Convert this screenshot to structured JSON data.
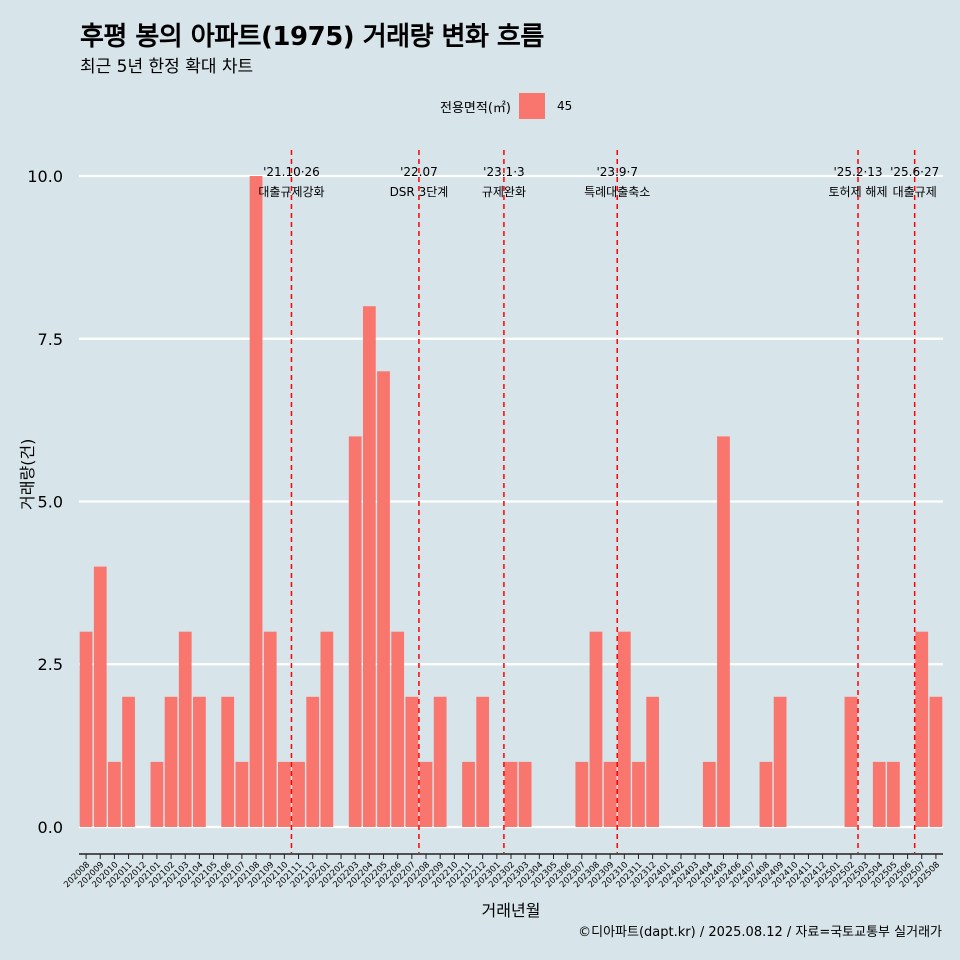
{
  "title": "후평 봉의 아파트(1975) 거래량 변화 흐름",
  "subtitle": "최근 5년 한정 확대 차트",
  "legend": {
    "title": "전용면적(㎡)",
    "item": "45",
    "color": "#f8766d"
  },
  "caption": "©디아파트(dapt.kr) / 2025.08.12 / 자료=국토교통부 실거래가",
  "chart_data": {
    "type": "bar",
    "xlabel": "거래년월",
    "ylabel": "거래량(건)",
    "ylim": [
      -0.4,
      10.4
    ],
    "yticks": [
      0.0,
      2.5,
      5.0,
      7.5,
      10.0
    ],
    "ytick_labels": [
      "0.0",
      "2.5",
      "5.0",
      "7.5",
      "10.0"
    ],
    "grid": true,
    "bar_color": "#f8766d",
    "categories": [
      "202008",
      "202009",
      "202010",
      "202011",
      "202012",
      "202101",
      "202102",
      "202103",
      "202104",
      "202105",
      "202106",
      "202107",
      "202108",
      "202109",
      "202110",
      "202111",
      "202112",
      "202201",
      "202202",
      "202203",
      "202204",
      "202205",
      "202206",
      "202207",
      "202208",
      "202209",
      "202210",
      "202211",
      "202212",
      "202301",
      "202302",
      "202303",
      "202304",
      "202305",
      "202306",
      "202307",
      "202308",
      "202309",
      "202310",
      "202311",
      "202312",
      "202401",
      "202402",
      "202403",
      "202404",
      "202405",
      "202406",
      "202407",
      "202408",
      "202409",
      "202410",
      "202411",
      "202412",
      "202501",
      "202502",
      "202503",
      "202504",
      "202505",
      "202506",
      "202507",
      "202508"
    ],
    "values": [
      3,
      4,
      1,
      2,
      0,
      1,
      2,
      3,
      2,
      0,
      2,
      1,
      10,
      3,
      1,
      1,
      2,
      3,
      0,
      6,
      8,
      7,
      3,
      2,
      1,
      2,
      0,
      1,
      2,
      0,
      1,
      1,
      0,
      0,
      0,
      1,
      3,
      1,
      3,
      1,
      2,
      0,
      0,
      0,
      1,
      6,
      0,
      0,
      1,
      2,
      0,
      0,
      0,
      0,
      2,
      0,
      1,
      1,
      0,
      3,
      2
    ],
    "annotations": [
      {
        "date_label": "'21.10·26",
        "text": "대출규제강화",
        "index": 14.5
      },
      {
        "date_label": "'22.07",
        "text": "DSR 3단계",
        "index": 23.5
      },
      {
        "date_label": "'23.1·3",
        "text": "규제완화",
        "index": 29.5
      },
      {
        "date_label": "'23.9·7",
        "text": "특례대출축소",
        "index": 37.5
      },
      {
        "date_label": "'25.2·13",
        "text": "토허제 해제",
        "index": 54.5
      },
      {
        "date_label": "'25.6·27",
        "text": "대출규제",
        "index": 58.5
      }
    ]
  }
}
